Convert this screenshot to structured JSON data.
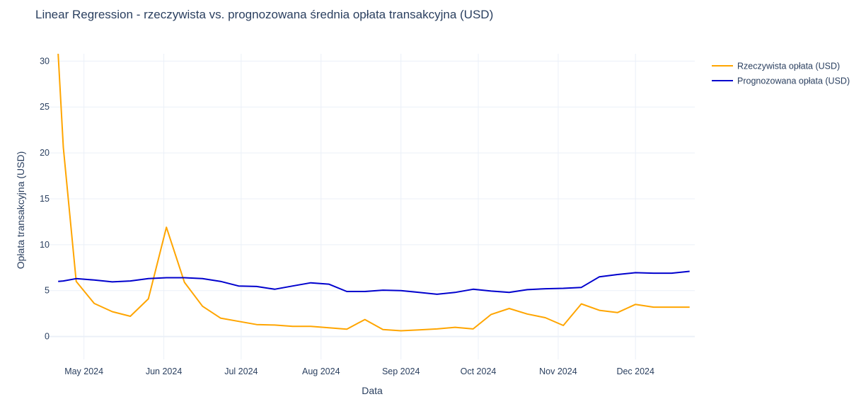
{
  "chart_data": {
    "type": "line",
    "title": "Linear Regression - rzeczywista vs. prognozowana średnia opłata transakcyjna (USD)",
    "xlabel": "Data",
    "ylabel": "Opłata transakcyjna (USD)",
    "ylim": [
      -2.5,
      30.8
    ],
    "xlim": [
      "2024-04-16",
      "2024-12-24"
    ],
    "grid": true,
    "legend_position": "top-right",
    "x_ticks": [
      {
        "date": "2024-05-01",
        "label": "May 2024"
      },
      {
        "date": "2024-06-01",
        "label": "Jun 2024"
      },
      {
        "date": "2024-07-01",
        "label": "Jul 2024"
      },
      {
        "date": "2024-08-01",
        "label": "Aug 2024"
      },
      {
        "date": "2024-09-01",
        "label": "Sep 2024"
      },
      {
        "date": "2024-10-01",
        "label": "Oct 2024"
      },
      {
        "date": "2024-11-01",
        "label": "Nov 2024"
      },
      {
        "date": "2024-12-01",
        "label": "Dec 2024"
      }
    ],
    "y_ticks": [
      0,
      5,
      10,
      15,
      20,
      25,
      30
    ],
    "x": [
      "2024-04-21",
      "2024-04-23",
      "2024-04-28",
      "2024-05-05",
      "2024-05-12",
      "2024-05-19",
      "2024-05-26",
      "2024-06-02",
      "2024-06-09",
      "2024-06-16",
      "2024-06-23",
      "2024-06-30",
      "2024-07-07",
      "2024-07-14",
      "2024-07-21",
      "2024-07-28",
      "2024-08-04",
      "2024-08-11",
      "2024-08-18",
      "2024-08-25",
      "2024-09-01",
      "2024-09-08",
      "2024-09-15",
      "2024-09-22",
      "2024-09-29",
      "2024-10-06",
      "2024-10-13",
      "2024-10-20",
      "2024-10-27",
      "2024-11-03",
      "2024-11-10",
      "2024-11-17",
      "2024-11-24",
      "2024-12-01",
      "2024-12-08",
      "2024-12-15",
      "2024-12-22"
    ],
    "series": [
      {
        "name": "Rzeczywista opłata (USD)",
        "color": "#ffa500",
        "values": [
          30.8,
          20.6,
          6.0,
          3.6,
          2.7,
          2.2,
          4.1,
          11.9,
          5.9,
          3.3,
          2.0,
          1.65,
          1.3,
          1.25,
          1.1,
          1.1,
          0.95,
          0.8,
          1.85,
          0.75,
          0.62,
          0.72,
          0.82,
          1.0,
          0.82,
          2.4,
          3.05,
          2.45,
          2.05,
          1.2,
          3.55,
          2.85,
          2.6,
          3.5,
          3.2,
          3.2,
          3.2
        ]
      },
      {
        "name": "Prognozowana opłata (USD)",
        "color": "#0000cd",
        "values": [
          6.0,
          6.05,
          6.3,
          6.15,
          5.95,
          6.05,
          6.3,
          6.4,
          6.4,
          6.3,
          6.0,
          5.5,
          5.45,
          5.15,
          5.5,
          5.85,
          5.7,
          4.9,
          4.9,
          5.05,
          5.0,
          4.8,
          4.6,
          4.8,
          5.15,
          4.95,
          4.8,
          5.1,
          5.2,
          5.25,
          5.35,
          6.5,
          6.75,
          6.95,
          6.9,
          6.9,
          7.1
        ]
      }
    ]
  }
}
